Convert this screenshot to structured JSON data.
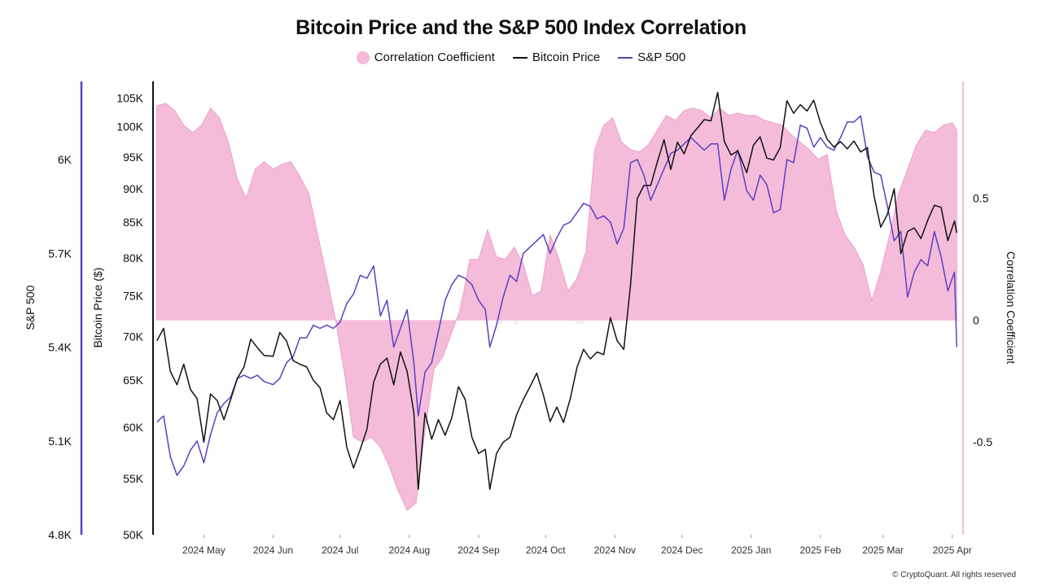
{
  "chart_data": {
    "type": "line",
    "title": "Bitcoin Price and the S&P 500 Index Correlation",
    "legend": {
      "position": "top-center",
      "items": [
        {
          "label": "Correlation Coefficient",
          "color": "#f4b8d8",
          "kind": "area"
        },
        {
          "label": "Bitcoin Price",
          "color": "#111111",
          "kind": "line"
        },
        {
          "label": "S&P 500",
          "color": "#5b3fc4",
          "kind": "line"
        }
      ]
    },
    "axes": {
      "sp500": {
        "label": "S&P 500",
        "ticks": [
          "6K",
          "5.7K",
          "5.4K",
          "5.1K",
          "4.8K"
        ],
        "tick_values": [
          6000,
          5700,
          5400,
          5100,
          4800
        ],
        "range": [
          4800,
          6250
        ],
        "color": "#5b3fc4"
      },
      "btc": {
        "label": "Bitcoin Price ($)",
        "ticks": [
          "105K",
          "100K",
          "95K",
          "90K",
          "85K",
          "80K",
          "75K",
          "70K",
          "65K",
          "60K",
          "55K",
          "50K"
        ],
        "tick_values": [
          105000,
          100000,
          95000,
          90000,
          85000,
          80000,
          75000,
          70000,
          65000,
          60000,
          55000,
          50000
        ],
        "range": [
          50000,
          108000
        ],
        "scale": "log"
      },
      "corr": {
        "label": "Correlation Coefficient",
        "ticks": [
          "0.5",
          "0",
          "-0.5"
        ],
        "tick_values": [
          0.5,
          0,
          -0.5
        ],
        "range": [
          -0.88,
          0.98
        ],
        "color": "#f4b8d8"
      },
      "x": {
        "ticks": [
          "2024 May",
          "2024 Jun",
          "2024 Jul",
          "2024 Aug",
          "2024 Sep",
          "2024 Oct",
          "2024 Nov",
          "2024 Dec",
          "2025 Jan",
          "2025 Feb",
          "2025 Mar",
          "2025 Apr"
        ],
        "tick_dates": [
          "2024-05-01",
          "2024-06-01",
          "2024-07-01",
          "2024-08-01",
          "2024-09-01",
          "2024-10-01",
          "2024-11-01",
          "2024-12-01",
          "2025-01-01",
          "2025-02-01",
          "2025-03-01",
          "2025-04-01"
        ],
        "range": [
          "2024-04-09",
          "2025-04-04"
        ]
      }
    },
    "series": [
      {
        "name": "Correlation Coefficient",
        "axis": "corr",
        "x": [
          "2024-04-10",
          "2024-04-14",
          "2024-04-18",
          "2024-04-22",
          "2024-04-26",
          "2024-04-30",
          "2024-05-04",
          "2024-05-08",
          "2024-05-12",
          "2024-05-16",
          "2024-05-20",
          "2024-05-24",
          "2024-05-28",
          "2024-06-01",
          "2024-06-05",
          "2024-06-09",
          "2024-06-13",
          "2024-06-17",
          "2024-06-21",
          "2024-06-25",
          "2024-06-29",
          "2024-07-03",
          "2024-07-07",
          "2024-07-11",
          "2024-07-15",
          "2024-07-19",
          "2024-07-23",
          "2024-07-27",
          "2024-07-31",
          "2024-08-04",
          "2024-08-08",
          "2024-08-12",
          "2024-08-16",
          "2024-08-20",
          "2024-08-24",
          "2024-08-28",
          "2024-09-01",
          "2024-09-05",
          "2024-09-09",
          "2024-09-13",
          "2024-09-17",
          "2024-09-21",
          "2024-09-25",
          "2024-09-29",
          "2024-10-03",
          "2024-10-07",
          "2024-10-11",
          "2024-10-15",
          "2024-10-19",
          "2024-10-23",
          "2024-10-27",
          "2024-10-31",
          "2024-11-04",
          "2024-11-08",
          "2024-11-12",
          "2024-11-16",
          "2024-11-20",
          "2024-11-24",
          "2024-11-28",
          "2024-12-02",
          "2024-12-06",
          "2024-12-10",
          "2024-12-14",
          "2024-12-18",
          "2024-12-22",
          "2024-12-26",
          "2024-12-30",
          "2025-01-03",
          "2025-01-07",
          "2025-01-11",
          "2025-01-15",
          "2025-01-19",
          "2025-01-23",
          "2025-01-27",
          "2025-01-31",
          "2025-02-04",
          "2025-02-08",
          "2025-02-12",
          "2025-02-16",
          "2025-02-20",
          "2025-02-24",
          "2025-02-28",
          "2025-03-04",
          "2025-03-08",
          "2025-03-12",
          "2025-03-16",
          "2025-03-20",
          "2025-03-24",
          "2025-03-28",
          "2025-04-01",
          "2025-04-03"
        ],
        "values": [
          0.88,
          0.89,
          0.86,
          0.8,
          0.77,
          0.8,
          0.87,
          0.83,
          0.73,
          0.58,
          0.5,
          0.62,
          0.65,
          0.62,
          0.64,
          0.65,
          0.59,
          0.52,
          0.35,
          0.18,
          0.0,
          -0.22,
          -0.48,
          -0.5,
          -0.48,
          -0.52,
          -0.6,
          -0.7,
          -0.78,
          -0.75,
          -0.45,
          -0.2,
          -0.15,
          -0.05,
          0.05,
          0.25,
          0.25,
          0.37,
          0.26,
          0.25,
          0.3,
          0.23,
          0.1,
          0.12,
          0.35,
          0.25,
          0.12,
          0.17,
          0.28,
          0.7,
          0.8,
          0.83,
          0.73,
          0.7,
          0.69,
          0.72,
          0.78,
          0.84,
          0.82,
          0.86,
          0.87,
          0.86,
          0.83,
          0.87,
          0.84,
          0.85,
          0.84,
          0.84,
          0.82,
          0.81,
          0.8,
          0.76,
          0.73,
          0.7,
          0.66,
          0.68,
          0.45,
          0.35,
          0.3,
          0.23,
          0.08,
          0.2,
          0.35,
          0.52,
          0.62,
          0.72,
          0.78,
          0.77,
          0.8,
          0.81,
          0.78
        ]
      },
      {
        "name": "Bitcoin Price",
        "axis": "btc",
        "x": [
          "2024-04-10",
          "2024-04-13",
          "2024-04-16",
          "2024-04-19",
          "2024-04-22",
          "2024-04-25",
          "2024-04-28",
          "2024-05-01",
          "2024-05-04",
          "2024-05-07",
          "2024-05-10",
          "2024-05-13",
          "2024-05-16",
          "2024-05-19",
          "2024-05-22",
          "2024-05-25",
          "2024-05-28",
          "2024-06-01",
          "2024-06-04",
          "2024-06-07",
          "2024-06-10",
          "2024-06-13",
          "2024-06-16",
          "2024-06-19",
          "2024-06-22",
          "2024-06-25",
          "2024-06-28",
          "2024-07-01",
          "2024-07-04",
          "2024-07-07",
          "2024-07-10",
          "2024-07-13",
          "2024-07-16",
          "2024-07-19",
          "2024-07-22",
          "2024-07-25",
          "2024-07-28",
          "2024-07-31",
          "2024-08-03",
          "2024-08-05",
          "2024-08-08",
          "2024-08-11",
          "2024-08-14",
          "2024-08-17",
          "2024-08-20",
          "2024-08-23",
          "2024-08-26",
          "2024-08-29",
          "2024-09-01",
          "2024-09-04",
          "2024-09-06",
          "2024-09-09",
          "2024-09-12",
          "2024-09-15",
          "2024-09-18",
          "2024-09-21",
          "2024-09-24",
          "2024-09-27",
          "2024-09-30",
          "2024-10-03",
          "2024-10-06",
          "2024-10-09",
          "2024-10-12",
          "2024-10-15",
          "2024-10-18",
          "2024-10-21",
          "2024-10-24",
          "2024-10-27",
          "2024-10-30",
          "2024-11-02",
          "2024-11-05",
          "2024-11-08",
          "2024-11-11",
          "2024-11-14",
          "2024-11-17",
          "2024-11-20",
          "2024-11-23",
          "2024-11-26",
          "2024-11-29",
          "2024-12-02",
          "2024-12-05",
          "2024-12-08",
          "2024-12-11",
          "2024-12-14",
          "2024-12-17",
          "2024-12-20",
          "2024-12-23",
          "2024-12-26",
          "2024-12-30",
          "2025-01-02",
          "2025-01-05",
          "2025-01-08",
          "2025-01-11",
          "2025-01-14",
          "2025-01-17",
          "2025-01-20",
          "2025-01-23",
          "2025-01-26",
          "2025-01-29",
          "2025-02-01",
          "2025-02-04",
          "2025-02-07",
          "2025-02-10",
          "2025-02-13",
          "2025-02-16",
          "2025-02-19",
          "2025-02-22",
          "2025-02-25",
          "2025-02-28",
          "2025-03-03",
          "2025-03-06",
          "2025-03-09",
          "2025-03-12",
          "2025-03-15",
          "2025-03-18",
          "2025-03-21",
          "2025-03-24",
          "2025-03-27",
          "2025-03-30",
          "2025-04-02",
          "2025-04-03"
        ],
        "values": [
          69500,
          71000,
          66000,
          64500,
          66800,
          64000,
          63000,
          58500,
          63500,
          62800,
          60800,
          62900,
          65200,
          66500,
          69700,
          68700,
          67800,
          67700,
          70500,
          69500,
          67200,
          66800,
          66500,
          65000,
          64200,
          61500,
          60800,
          62800,
          58000,
          56000,
          57800,
          59800,
          64800,
          66800,
          67500,
          64500,
          68200,
          66000,
          61500,
          54000,
          61500,
          58800,
          60800,
          59200,
          61000,
          64300,
          62900,
          59000,
          57400,
          57800,
          54000,
          57400,
          58500,
          59000,
          61300,
          62900,
          64300,
          65800,
          63400,
          60600,
          62100,
          60500,
          63000,
          66400,
          68500,
          67400,
          68200,
          67900,
          72300,
          69500,
          68500,
          76500,
          88500,
          90500,
          90500,
          94200,
          97800,
          93000,
          97400,
          95500,
          98500,
          99800,
          101200,
          101000,
          106000,
          97500,
          95300,
          96000,
          92500,
          96900,
          98300,
          94800,
          94500,
          96500,
          104500,
          102300,
          103800,
          102700,
          104600,
          100700,
          97900,
          96600,
          97500,
          96300,
          97600,
          95800,
          96500,
          88900,
          84300,
          86200,
          90000,
          80600,
          83700,
          84200,
          82700,
          85300,
          87500,
          87200,
          82400,
          85200,
          83500
        ]
      },
      {
        "name": "S&P 500",
        "axis": "sp500",
        "x": [
          "2024-04-10",
          "2024-04-13",
          "2024-04-16",
          "2024-04-19",
          "2024-04-22",
          "2024-04-25",
          "2024-04-28",
          "2024-05-01",
          "2024-05-04",
          "2024-05-07",
          "2024-05-10",
          "2024-05-13",
          "2024-05-16",
          "2024-05-19",
          "2024-05-22",
          "2024-05-25",
          "2024-05-28",
          "2024-06-01",
          "2024-06-04",
          "2024-06-07",
          "2024-06-10",
          "2024-06-13",
          "2024-06-16",
          "2024-06-19",
          "2024-06-22",
          "2024-06-25",
          "2024-06-28",
          "2024-07-01",
          "2024-07-04",
          "2024-07-07",
          "2024-07-10",
          "2024-07-13",
          "2024-07-16",
          "2024-07-19",
          "2024-07-22",
          "2024-07-25",
          "2024-07-28",
          "2024-07-31",
          "2024-08-03",
          "2024-08-05",
          "2024-08-08",
          "2024-08-11",
          "2024-08-14",
          "2024-08-17",
          "2024-08-20",
          "2024-08-23",
          "2024-08-26",
          "2024-08-29",
          "2024-09-01",
          "2024-09-04",
          "2024-09-06",
          "2024-09-09",
          "2024-09-12",
          "2024-09-15",
          "2024-09-18",
          "2024-09-21",
          "2024-09-24",
          "2024-09-27",
          "2024-09-30",
          "2024-10-03",
          "2024-10-06",
          "2024-10-09",
          "2024-10-12",
          "2024-10-15",
          "2024-10-18",
          "2024-10-21",
          "2024-10-24",
          "2024-10-27",
          "2024-10-30",
          "2024-11-02",
          "2024-11-05",
          "2024-11-08",
          "2024-11-11",
          "2024-11-14",
          "2024-11-17",
          "2024-11-20",
          "2024-11-23",
          "2024-11-26",
          "2024-11-29",
          "2024-12-02",
          "2024-12-05",
          "2024-12-08",
          "2024-12-11",
          "2024-12-14",
          "2024-12-17",
          "2024-12-20",
          "2024-12-23",
          "2024-12-26",
          "2024-12-30",
          "2025-01-02",
          "2025-01-05",
          "2025-01-08",
          "2025-01-11",
          "2025-01-14",
          "2025-01-17",
          "2025-01-20",
          "2025-01-23",
          "2025-01-26",
          "2025-01-29",
          "2025-02-01",
          "2025-02-04",
          "2025-02-07",
          "2025-02-10",
          "2025-02-13",
          "2025-02-16",
          "2025-02-19",
          "2025-02-22",
          "2025-02-25",
          "2025-02-28",
          "2025-03-03",
          "2025-03-06",
          "2025-03-09",
          "2025-03-12",
          "2025-03-15",
          "2025-03-18",
          "2025-03-21",
          "2025-03-24",
          "2025-03-27",
          "2025-03-30",
          "2025-04-02",
          "2025-04-03"
        ],
        "values": [
          5160,
          5180,
          5050,
          4990,
          5020,
          5070,
          5100,
          5030,
          5120,
          5190,
          5220,
          5240,
          5300,
          5310,
          5300,
          5310,
          5290,
          5280,
          5300,
          5350,
          5370,
          5430,
          5430,
          5470,
          5460,
          5470,
          5460,
          5480,
          5540,
          5570,
          5630,
          5620,
          5660,
          5500,
          5550,
          5400,
          5460,
          5520,
          5350,
          5180,
          5320,
          5350,
          5450,
          5550,
          5600,
          5630,
          5620,
          5600,
          5550,
          5520,
          5400,
          5470,
          5560,
          5630,
          5610,
          5700,
          5720,
          5740,
          5760,
          5700,
          5750,
          5790,
          5800,
          5830,
          5860,
          5850,
          5810,
          5820,
          5800,
          5730,
          5780,
          5990,
          6000,
          5950,
          5870,
          5920,
          5970,
          6020,
          6030,
          6050,
          6070,
          6050,
          6030,
          6050,
          6050,
          5870,
          5970,
          6030,
          5900,
          5870,
          5950,
          5920,
          5830,
          5840,
          6000,
          5990,
          6110,
          6100,
          6040,
          6070,
          6040,
          6030,
          6070,
          6120,
          6120,
          6140,
          6010,
          5960,
          5950,
          5850,
          5740,
          5770,
          5560,
          5640,
          5680,
          5660,
          5770,
          5690,
          5580,
          5640,
          5400
        ]
      }
    ],
    "watermark": "CryptoQuant",
    "copyright": "© CryptoQuant. All rights reserved",
    "grid": false
  }
}
